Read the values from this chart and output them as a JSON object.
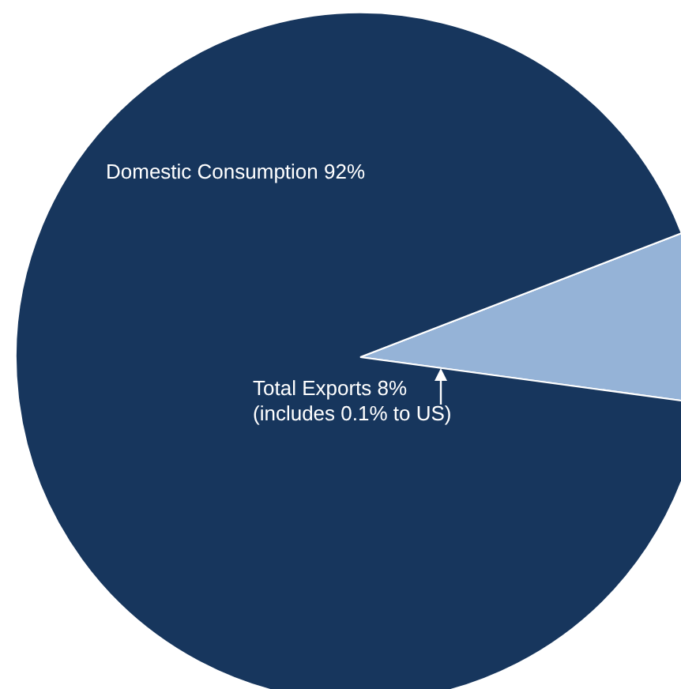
{
  "chart_data": {
    "type": "pie",
    "categories": [
      "Total Exports",
      "Domestic Consumption"
    ],
    "values": [
      8,
      92
    ],
    "value_labels": [
      "8%",
      "92%"
    ],
    "colors": [
      "#95b3d7",
      "#17365d"
    ],
    "annotations": [
      "(includes 0.1% to US)"
    ]
  }
}
